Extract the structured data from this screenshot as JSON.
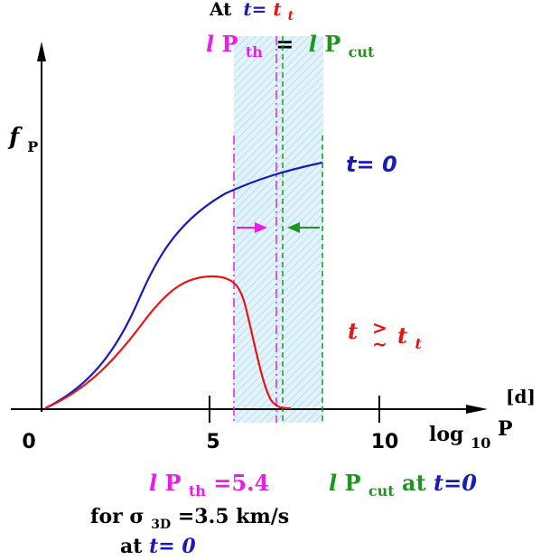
{
  "header": {
    "at_word": "At",
    "t_eq": "t=",
    "t_t_base": "t",
    "t_t_sub": "t"
  },
  "threshold_label": {
    "l_th": "l",
    "p_th": "P",
    "th_sub": "th",
    "equals": "=",
    "l_cut": "l",
    "p_cut": "P",
    "cut_sub": "cut"
  },
  "axes": {
    "y_label_base": "f",
    "y_label_sub": "P",
    "x_label_log": "log",
    "x_label_sub": "10",
    "x_label_p": "P",
    "x_unit": "[d]",
    "ticks": [
      {
        "value": 0,
        "label": "0"
      },
      {
        "value": 5,
        "label": "5"
      },
      {
        "value": 10,
        "label": "10"
      }
    ]
  },
  "curves": {
    "t0_label": "t= 0",
    "tt_label_t": "t",
    "tt_label_t2": "t",
    "tt_label_sub": "t",
    "tt_geq": ">",
    "tt_sim": "~"
  },
  "footer": {
    "line1_l": "l",
    "line1_p": "P",
    "line1_sub": "th",
    "line1_val": " =5.4",
    "line1_cut_l": "l",
    "line1_cut_p": "P",
    "line1_cut_sub": "cut",
    "line1_cut_at": " at ",
    "line1_cut_t": "t=0",
    "line2_for": "for ",
    "line2_sigma": "σ",
    "line2_sub": "3D",
    "line2_val": "=3.5 km/s",
    "line3_at": "at ",
    "line3_t": "t= 0"
  },
  "colors": {
    "blue": "#1a1ab8",
    "red": "#e81414",
    "magenta": "#e81ee8",
    "green": "#1e961e",
    "band": "#bfe3f5"
  }
}
